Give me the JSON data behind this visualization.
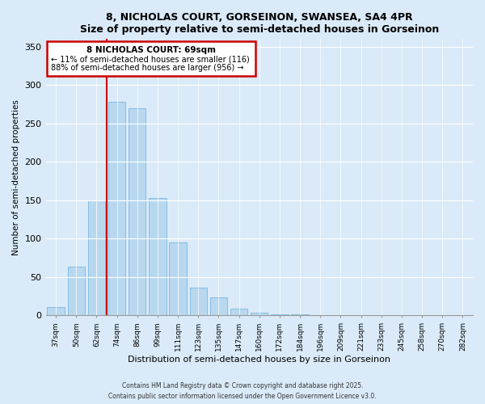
{
  "title": "8, NICHOLAS COURT, GORSEINON, SWANSEA, SA4 4PR",
  "subtitle": "Size of property relative to semi-detached houses in Gorseinon",
  "xlabel": "Distribution of semi-detached houses by size in Gorseinon",
  "ylabel": "Number of semi-detached properties",
  "bar_labels": [
    "37sqm",
    "50sqm",
    "62sqm",
    "74sqm",
    "86sqm",
    "99sqm",
    "111sqm",
    "123sqm",
    "135sqm",
    "147sqm",
    "160sqm",
    "172sqm",
    "184sqm",
    "196sqm",
    "209sqm",
    "221sqm",
    "233sqm",
    "245sqm",
    "258sqm",
    "270sqm",
    "282sqm"
  ],
  "bar_values": [
    11,
    64,
    150,
    278,
    270,
    153,
    95,
    36,
    24,
    9,
    4,
    1,
    1,
    0,
    0,
    0,
    0,
    0,
    0,
    0,
    0
  ],
  "bar_color": "#b8d8f0",
  "bar_edge_color": "#7ab8e0",
  "property_line_label": "8 NICHOLAS COURT: 69sqm",
  "annotation_line1": "← 11% of semi-detached houses are smaller (116)",
  "annotation_line2": "88% of semi-detached houses are larger (956) →",
  "vline_color": "#cc0000",
  "box_edge_color": "#cc0000",
  "ylim": [
    0,
    360
  ],
  "yticks": [
    0,
    50,
    100,
    150,
    200,
    250,
    300,
    350
  ],
  "footnote1": "Contains HM Land Registry data © Crown copyright and database right 2025.",
  "footnote2": "Contains public sector information licensed under the Open Government Licence v3.0.",
  "background_color": "#daeaf8",
  "plot_bg_color": "#daeaf8"
}
